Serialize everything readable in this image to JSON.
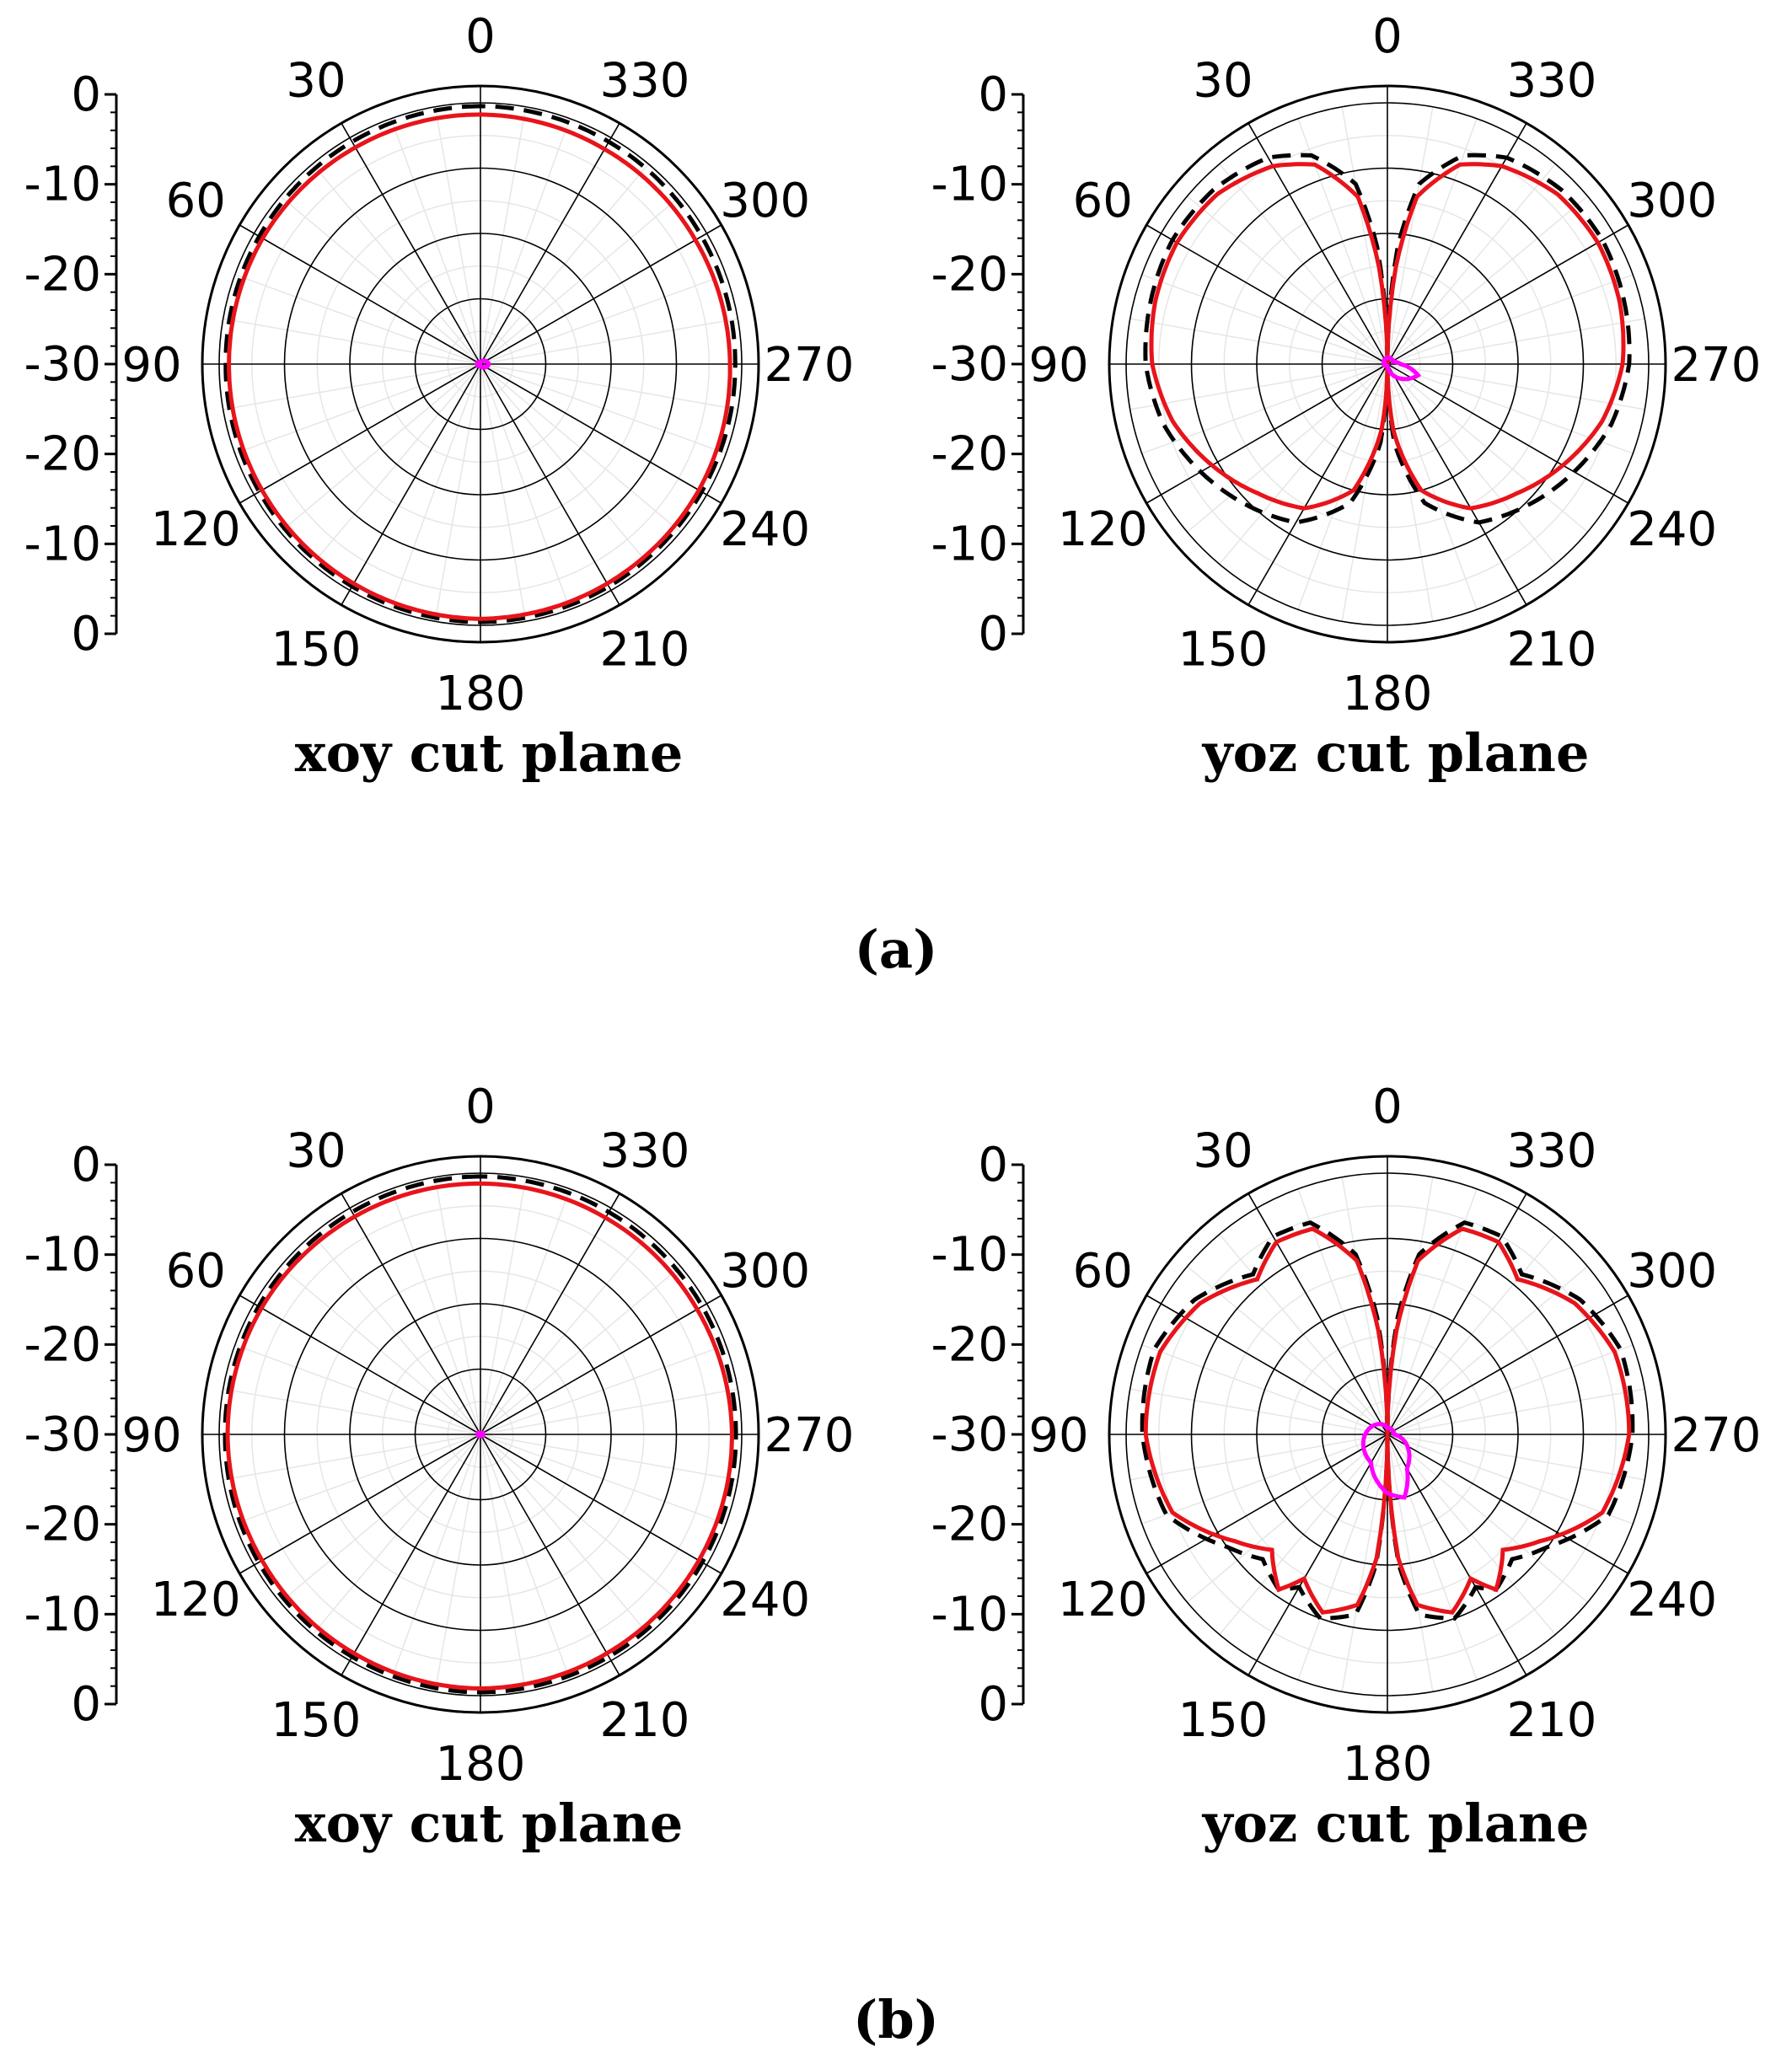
{
  "figure_labels": [
    "(a)",
    "(b)"
  ],
  "colors": {
    "co_pol_red": "#e8141b",
    "reference_dashed": "#000000",
    "cross_pol_magenta": "#ff00ff",
    "grid": "#000000"
  },
  "chart_data": [
    {
      "type": "polar",
      "title": "xoy cut plane",
      "panel": "(a)",
      "angle_tick_labels": [
        "0",
        "30",
        "60",
        "90",
        "120",
        "150",
        "180",
        "210",
        "240",
        "270",
        "300",
        "330"
      ],
      "radial_tick_labels": [
        "0",
        "-10",
        "-20",
        "-30",
        "-20",
        "-10",
        "0"
      ],
      "rlim": [
        -40,
        0
      ],
      "angle_direction": "counterclockwise from top",
      "series": [
        {
          "style": "dashed-black",
          "angles_deg": [
            0,
            30,
            60,
            90,
            120,
            150,
            180,
            210,
            240,
            270,
            300,
            330
          ],
          "values_db": [
            -0.5,
            -0.7,
            -0.9,
            -1.0,
            -0.9,
            -0.7,
            -0.5,
            -0.7,
            -0.9,
            -1.0,
            -0.9,
            -0.7
          ]
        },
        {
          "style": "solid-red",
          "angles_deg": [
            0,
            30,
            60,
            90,
            120,
            150,
            180,
            210,
            240,
            270,
            300,
            330
          ],
          "values_db": [
            -1.8,
            -1.7,
            -1.5,
            -1.5,
            -1.4,
            -1.2,
            -1.0,
            -1.2,
            -1.4,
            -1.8,
            -2.0,
            -2.0
          ]
        },
        {
          "style": "magenta",
          "angles_deg": [
            0,
            90,
            180,
            270
          ],
          "values_db": [
            -39.8,
            -39.5,
            -39.8,
            -38.7
          ]
        }
      ]
    },
    {
      "type": "polar",
      "title": "yoz cut plane",
      "panel": "(a)",
      "angle_tick_labels": [
        "0",
        "30",
        "60",
        "90",
        "120",
        "150",
        "180",
        "210",
        "240",
        "270",
        "300",
        "330"
      ],
      "radial_tick_labels": [
        "0",
        "-10",
        "-20",
        "-30",
        "-20",
        "-10",
        "0"
      ],
      "rlim": [
        -40,
        0
      ],
      "angle_direction": "counterclockwise from top",
      "series": [
        {
          "style": "dashed-black",
          "angles_deg": [
            0,
            5,
            10,
            20,
            30,
            45,
            60,
            75,
            90,
            105,
            120,
            135,
            150,
            165,
            175,
            180,
            185,
            195,
            210,
            225,
            240,
            255,
            270,
            285,
            300,
            315,
            330,
            340,
            350,
            355
          ],
          "values_db": [
            -40,
            -22,
            -12,
            -6,
            -3.5,
            -2.3,
            -2,
            -2.5,
            -3,
            -4.5,
            -7,
            -9.5,
            -12,
            -18,
            -28,
            -40,
            -28,
            -18,
            -12,
            -9.5,
            -7,
            -4.5,
            -3,
            -2.5,
            -2,
            -2.3,
            -3.5,
            -6,
            -12,
            -22
          ]
        },
        {
          "style": "solid-red",
          "angles_deg": [
            0,
            5,
            10,
            20,
            30,
            45,
            60,
            75,
            90,
            105,
            120,
            135,
            150,
            165,
            175,
            180,
            185,
            195,
            210,
            225,
            240,
            255,
            270,
            285,
            300,
            315,
            330,
            340,
            350,
            355
          ],
          "values_db": [
            -40,
            -25,
            -14,
            -7.5,
            -5,
            -3.2,
            -2.8,
            -3.2,
            -4,
            -6,
            -9,
            -12,
            -14.5,
            -20,
            -30,
            -40,
            -30,
            -20,
            -14.5,
            -12,
            -9,
            -6,
            -4,
            -3.2,
            -2.8,
            -3.2,
            -5,
            -7.5,
            -14,
            -25
          ]
        },
        {
          "style": "magenta",
          "angles_deg": [
            0,
            90,
            180,
            250,
            270,
            290
          ],
          "values_db": [
            -39,
            -39.5,
            -40,
            -35,
            -38,
            -39
          ]
        }
      ]
    },
    {
      "type": "polar",
      "title": "xoy cut plane",
      "panel": "(b)",
      "angle_tick_labels": [
        "0",
        "30",
        "60",
        "90",
        "120",
        "150",
        "180",
        "210",
        "240",
        "270",
        "300",
        "330"
      ],
      "radial_tick_labels": [
        "0",
        "-10",
        "-20",
        "-30",
        "-20",
        "-10",
        "0"
      ],
      "rlim": [
        -40,
        0
      ],
      "angle_direction": "counterclockwise from top",
      "series": [
        {
          "style": "dashed-black",
          "angles_deg": [
            0,
            30,
            60,
            90,
            120,
            150,
            180,
            210,
            240,
            270,
            300,
            330
          ],
          "values_db": [
            -0.5,
            -0.7,
            -0.8,
            -0.9,
            -0.8,
            -0.7,
            -0.5,
            -0.7,
            -0.8,
            -0.9,
            -0.8,
            -0.7
          ]
        },
        {
          "style": "solid-red",
          "angles_deg": [
            0,
            30,
            60,
            90,
            120,
            150,
            180,
            210,
            240,
            270,
            300,
            330
          ],
          "values_db": [
            -1.6,
            -1.5,
            -1.3,
            -1.3,
            -1.4,
            -1.3,
            -1.1,
            -1.3,
            -1.4,
            -1.5,
            -1.7,
            -1.7
          ]
        },
        {
          "style": "magenta",
          "angles_deg": [
            0,
            90,
            180,
            270
          ],
          "values_db": [
            -39.8,
            -39.6,
            -39.8,
            -39.6
          ]
        }
      ]
    },
    {
      "type": "polar",
      "title": "yoz cut plane",
      "panel": "(b)",
      "angle_tick_labels": [
        "0",
        "30",
        "60",
        "90",
        "120",
        "150",
        "180",
        "210",
        "240",
        "270",
        "300",
        "330"
      ],
      "radial_tick_labels": [
        "0",
        "-10",
        "-20",
        "-30",
        "-20",
        "-10",
        "0"
      ],
      "rlim": [
        -40,
        0
      ],
      "angle_direction": "counterclockwise from top",
      "series": [
        {
          "style": "dashed-black",
          "angles_deg": [
            0,
            5,
            10,
            20,
            30,
            40,
            55,
            70,
            90,
            110,
            125,
            135,
            145,
            150,
            160,
            170,
            175,
            180,
            185,
            190,
            200,
            210,
            215,
            225,
            235,
            250,
            270,
            290,
            305,
            320,
            330,
            340,
            350,
            355
          ],
          "values_db": [
            -40,
            -22,
            -12,
            -5.5,
            -5,
            -8,
            -4,
            -2,
            -2.5,
            -4,
            -10,
            -13,
            -11,
            -13,
            -10,
            -12,
            -20,
            -40,
            -20,
            -12,
            -10,
            -13,
            -11,
            -13,
            -10,
            -4,
            -2.5,
            -2,
            -4,
            -8,
            -5,
            -5.5,
            -12,
            -22
          ]
        },
        {
          "style": "solid-red",
          "angles_deg": [
            0,
            5,
            10,
            20,
            30,
            40,
            55,
            70,
            90,
            110,
            125,
            135,
            145,
            150,
            160,
            170,
            175,
            180,
            185,
            190,
            200,
            210,
            215,
            225,
            235,
            250,
            270,
            290,
            305,
            320,
            330,
            340,
            350,
            355
          ],
          "values_db": [
            -40,
            -24,
            -13,
            -6.5,
            -6,
            -9,
            -5,
            -3,
            -3,
            -5,
            -11.5,
            -15,
            -11,
            -14.5,
            -11,
            -13.5,
            -21,
            -40,
            -21,
            -13.5,
            -11,
            -14.5,
            -11,
            -15,
            -11.5,
            -5,
            -3,
            -3,
            -5,
            -9,
            -6,
            -6.5,
            -13,
            -24
          ]
        },
        {
          "style": "magenta",
          "angles_deg": [
            0,
            150,
            180,
            195,
            210,
            270
          ],
          "values_db": [
            -39,
            -35,
            -31,
            -30,
            -34,
            -39
          ]
        }
      ]
    }
  ]
}
